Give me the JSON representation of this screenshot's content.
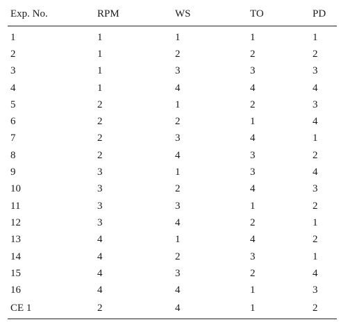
{
  "table": {
    "headers": [
      "Exp. No.",
      "RPM",
      "WS",
      "TO",
      "PD"
    ],
    "rows": [
      [
        "1",
        "1",
        "1",
        "1",
        "1"
      ],
      [
        "2",
        "1",
        "2",
        "2",
        "2"
      ],
      [
        "3",
        "1",
        "3",
        "3",
        "3"
      ],
      [
        "4",
        "1",
        "4",
        "4",
        "4"
      ],
      [
        "5",
        "2",
        "1",
        "2",
        "3"
      ],
      [
        "6",
        "2",
        "2",
        "1",
        "4"
      ],
      [
        "7",
        "2",
        "3",
        "4",
        "1"
      ],
      [
        "8",
        "2",
        "4",
        "3",
        "2"
      ],
      [
        "9",
        "3",
        "1",
        "3",
        "4"
      ],
      [
        "10",
        "3",
        "2",
        "4",
        "3"
      ],
      [
        "11",
        "3",
        "3",
        "1",
        "2"
      ],
      [
        "12",
        "3",
        "4",
        "2",
        "1"
      ],
      [
        "13",
        "4",
        "1",
        "4",
        "2"
      ],
      [
        "14",
        "4",
        "2",
        "3",
        "1"
      ],
      [
        "15",
        "4",
        "3",
        "2",
        "4"
      ],
      [
        "16",
        "4",
        "4",
        "1",
        "3"
      ],
      [
        "CE 1",
        "2",
        "4",
        "1",
        "2"
      ]
    ]
  }
}
